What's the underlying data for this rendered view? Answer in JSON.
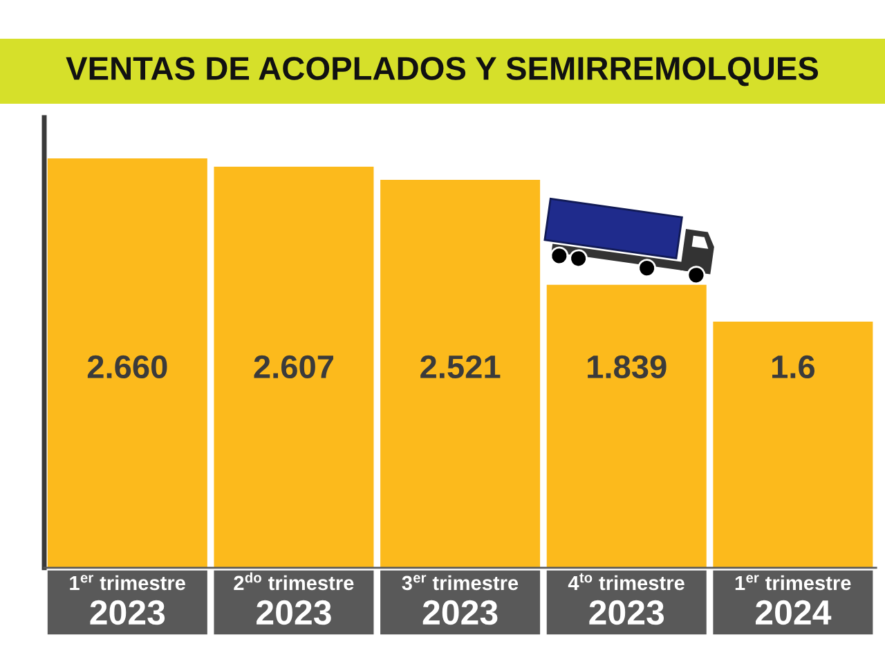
{
  "chart_data": {
    "type": "bar",
    "title": "VENTAS DE ACOPLADOS Y SEMIRREMOLQUES",
    "categories": [
      "1$^{er}$ trimestre\n2023",
      "2$^{do}$ trimestre\n2023",
      "3$^{er}$ trimestre\n2023",
      "4$^{to}$ trimestre\n2023",
      "1$^{er}$ trimestre\n2024"
    ],
    "values": [
      2.66,
      2.607,
      2.521,
      1.839,
      1.6
    ],
    "value_labels": [
      "2.660",
      "2.607",
      "2.521",
      "1.839",
      "1.6"
    ],
    "color": "#fcba1c",
    "tick_labels": "x"
  }
}
